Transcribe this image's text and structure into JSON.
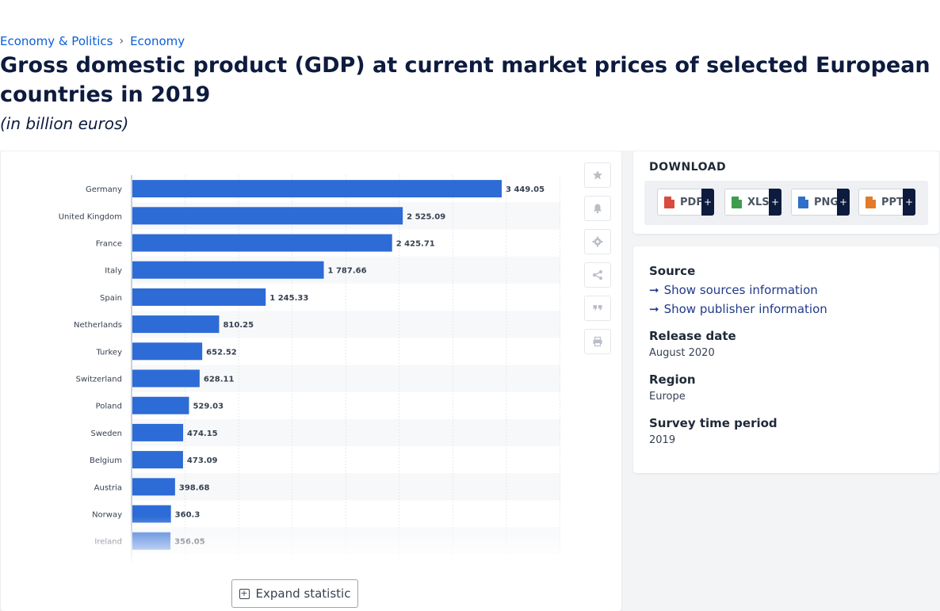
{
  "breadcrumb": [
    "Economy & Politics",
    "Economy"
  ],
  "breadcrumb_sep": "›",
  "title": "Gross domestic product (GDP) at current market prices of selected European countries in 2019",
  "subtitle": "(in billion euros)",
  "expand_label": "Expand statistic",
  "download": {
    "title": "DOWNLOAD",
    "formats": [
      {
        "label": "PDF",
        "color": "#d94b3c",
        "icon": "pdf-file-icon"
      },
      {
        "label": "XLS",
        "color": "#3f9b4e",
        "icon": "xls-file-icon"
      },
      {
        "label": "PNG",
        "color": "#2f6fc9",
        "icon": "png-file-icon"
      },
      {
        "label": "PPT",
        "color": "#e37b2a",
        "icon": "ppt-file-icon"
      }
    ],
    "plus": "+"
  },
  "source": {
    "label": "Source",
    "show_sources": "Show sources information",
    "show_publisher": "Show publisher information",
    "release_label": "Release date",
    "release_value": "August 2020",
    "region_label": "Region",
    "region_value": "Europe",
    "period_label": "Survey time period",
    "period_value": "2019"
  },
  "tools": [
    "star-icon",
    "bell-icon",
    "gear-icon",
    "share-icon",
    "quote-icon",
    "print-icon"
  ],
  "accent": "#2d6bd6",
  "chart_data": {
    "type": "bar",
    "orientation": "horizontal",
    "categories": [
      "Germany",
      "United Kingdom",
      "France",
      "Italy",
      "Spain",
      "Netherlands",
      "Turkey",
      "Switzerland",
      "Poland",
      "Sweden",
      "Belgium",
      "Austria",
      "Norway",
      "Ireland"
    ],
    "values": [
      3449.05,
      2525.09,
      2425.71,
      1787.66,
      1245.33,
      810.25,
      652.52,
      628.11,
      529.03,
      474.15,
      473.09,
      398.68,
      360.3,
      356.05
    ],
    "value_labels": [
      "3 449.05",
      "2 525.09",
      "2 425.71",
      "1 787.66",
      "1 245.33",
      "810.25",
      "652.52",
      "628.11",
      "529.03",
      "474.15",
      "473.09",
      "398.68",
      "360.3",
      "356.05"
    ],
    "xlim": [
      0,
      4000
    ],
    "grid": true,
    "bar_color": "#2d6bd6"
  }
}
